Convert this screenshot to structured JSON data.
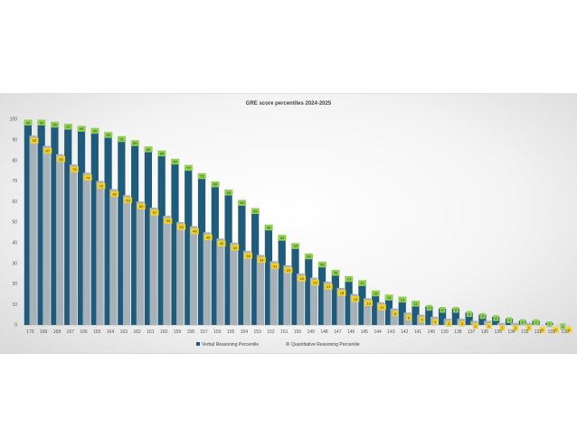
{
  "chart_data": {
    "type": "bar",
    "title": "GRE score percentiles 2024-2025",
    "xlabel": "",
    "ylabel": "",
    "ylim": [
      0,
      100
    ],
    "yticks": [
      0,
      10,
      20,
      30,
      40,
      50,
      60,
      70,
      80,
      90,
      100
    ],
    "grid": false,
    "legend_position": "bottom",
    "categories": [
      "170",
      "169",
      "168",
      "167",
      "166",
      "165",
      "164",
      "163",
      "162",
      "161",
      "160",
      "159",
      "158",
      "157",
      "156",
      "155",
      "154",
      "153",
      "152",
      "151",
      "150",
      "149",
      "148",
      "147",
      "146",
      "145",
      "144",
      "143",
      "142",
      "141",
      "140",
      "139",
      "138",
      "137",
      "136",
      "135",
      "134",
      "133",
      "132",
      "131",
      "130"
    ],
    "series": [
      {
        "name": "Verbal Reasoning Percentile",
        "color": "#1f5b7a",
        "label_color": "#8fd14f",
        "values": [
          99,
          99,
          98,
          97,
          96,
          95,
          93,
          91,
          89,
          86,
          84,
          80,
          77,
          73,
          69,
          65,
          60,
          56,
          48,
          43,
          39,
          34,
          30,
          26,
          23,
          21,
          16,
          14,
          13,
          11,
          9,
          8,
          8,
          6,
          5,
          4,
          3,
          2,
          2,
          1,
          0
        ]
      },
      {
        "name": "Quantitative Reasoning Percentile",
        "color": "#a6b1b8",
        "label_color": "#f2d027",
        "values": [
          92,
          87,
          83,
          78,
          74,
          70,
          66,
          63,
          60,
          57,
          53,
          50,
          48,
          45,
          42,
          40,
          36,
          34,
          31,
          29,
          25,
          23,
          21,
          18,
          15,
          13,
          11,
          8,
          6,
          5,
          4,
          3,
          3,
          2,
          2,
          1,
          1,
          1,
          0,
          0,
          0
        ]
      }
    ]
  }
}
